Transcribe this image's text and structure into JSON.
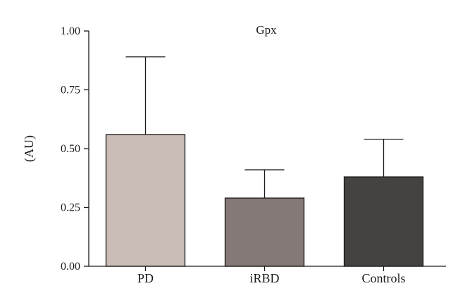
{
  "chart_data": {
    "type": "bar",
    "title": "Gpx",
    "xlabel": "",
    "ylabel": "(AU)",
    "ylim": [
      0,
      1.0
    ],
    "yticks": [
      "0.00",
      "0.25",
      "0.50",
      "0.75",
      "1.00"
    ],
    "categories": [
      "PD",
      "iRBD",
      "Controls"
    ],
    "values": [
      0.56,
      0.29,
      0.38
    ],
    "error_upper": [
      0.89,
      0.41,
      0.54
    ],
    "colors": [
      "#c9bdb6",
      "#847976",
      "#454340"
    ],
    "grid": false,
    "legend": "none"
  }
}
